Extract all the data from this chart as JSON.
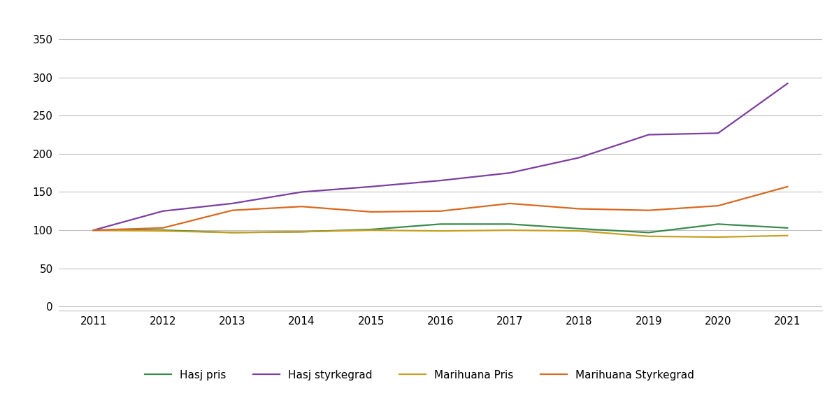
{
  "years": [
    2011,
    2012,
    2013,
    2014,
    2015,
    2016,
    2017,
    2018,
    2019,
    2020,
    2021
  ],
  "hasj_pris": [
    100,
    100,
    97,
    98,
    101,
    108,
    108,
    102,
    97,
    108,
    103
  ],
  "hasj_styrkegrad": [
    100,
    125,
    135,
    150,
    157,
    165,
    175,
    195,
    225,
    227,
    292
  ],
  "marihuana_pris": [
    100,
    99,
    97,
    98,
    100,
    99,
    100,
    99,
    92,
    91,
    93
  ],
  "marihuana_styrkegrad": [
    100,
    103,
    126,
    131,
    124,
    125,
    135,
    128,
    126,
    132,
    157
  ],
  "series_labels": [
    "Hasj pris",
    "Hasj styrkegrad",
    "Marihuana Pris",
    "Marihuana Styrkegrad"
  ],
  "colors": {
    "hasj_pris": "#3a8a4e",
    "hasj_styrkegrad": "#7b3fa0",
    "marihuana_pris": "#c8a020",
    "marihuana_styrkegrad": "#d96820"
  },
  "yticks": [
    0,
    50,
    100,
    150,
    200,
    250,
    300,
    350
  ],
  "ylim": [
    -5,
    370
  ],
  "xlim": [
    2010.5,
    2021.5
  ],
  "grid_color": "#c0c0c0",
  "background_color": "#ffffff",
  "line_width": 1.6,
  "font_size_ticks": 11,
  "font_size_legend": 11
}
